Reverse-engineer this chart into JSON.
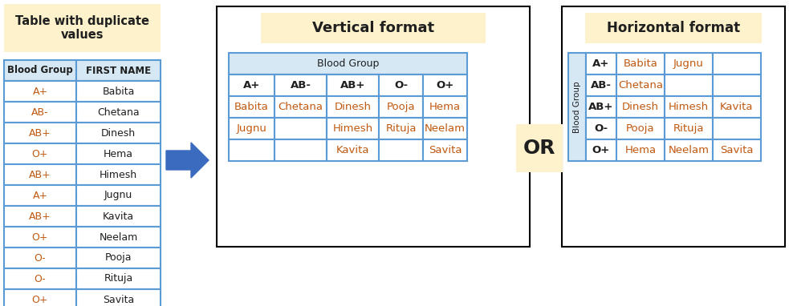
{
  "bg_color": "#ffffff",
  "title_bg_color": "#fdf2cc",
  "header_bg_color": "#d6e8f4",
  "border_color": "#5b9bd5",
  "text_color_dark": "#1f1f1f",
  "text_color_orange": "#c05911",
  "left_table_title": "Table with duplicate\nvalues",
  "left_table_headers": [
    "Blood Group",
    "FIRST NAME"
  ],
  "left_table_data": [
    [
      "A+",
      "Babita"
    ],
    [
      "AB-",
      "Chetana"
    ],
    [
      "AB+",
      "Dinesh"
    ],
    [
      "O+",
      "Hema"
    ],
    [
      "AB+",
      "Himesh"
    ],
    [
      "A+",
      "Jugnu"
    ],
    [
      "AB+",
      "Kavita"
    ],
    [
      "O+",
      "Neelam"
    ],
    [
      "O-",
      "Pooja"
    ],
    [
      "O-",
      "Rituja"
    ],
    [
      "O+",
      "Savita"
    ]
  ],
  "vertical_title": "Vertical format",
  "vertical_merged_header": "Blood Group",
  "vertical_col_headers": [
    "A+",
    "AB-",
    "AB+",
    "O-",
    "O+"
  ],
  "vertical_data": [
    [
      "Babita",
      "Chetana",
      "Dinesh",
      "Pooja",
      "Hema"
    ],
    [
      "Jugnu",
      "",
      "Himesh",
      "Rituja",
      "Neelam"
    ],
    [
      "",
      "",
      "Kavita",
      "",
      "Savita"
    ]
  ],
  "horizontal_title": "Horizontal format",
  "horizontal_merged_header": "Blood Group",
  "horizontal_row_headers": [
    "A+",
    "AB-",
    "AB+",
    "O-",
    "O+"
  ],
  "horizontal_data": [
    [
      "Babita",
      "Jugnu",
      ""
    ],
    [
      "Chetana",
      "",
      ""
    ],
    [
      "Dinesh",
      "Himesh",
      "Kavita"
    ],
    [
      "Pooja",
      "Rituja",
      ""
    ],
    [
      "Hema",
      "Neelam",
      "Savita"
    ]
  ],
  "or_text": "OR",
  "arrow_color": "#3a6bbf"
}
